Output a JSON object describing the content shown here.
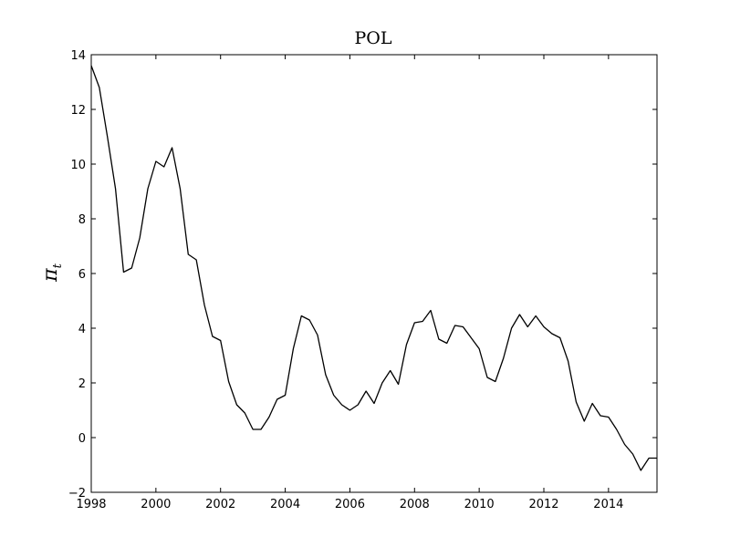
{
  "chart_data": {
    "type": "line",
    "title": "POL",
    "xlabel": "",
    "ylabel": "π",
    "ylabel_subscript": "t",
    "xlim": [
      1998,
      2015.5
    ],
    "ylim": [
      -2,
      14
    ],
    "xticks": [
      1998,
      2000,
      2002,
      2004,
      2006,
      2008,
      2010,
      2012,
      2014
    ],
    "yticks": [
      -2,
      0,
      2,
      4,
      6,
      8,
      10,
      12,
      14
    ],
    "ytick_labels": [
      "−2",
      "0",
      "2",
      "4",
      "6",
      "8",
      "10",
      "12",
      "14"
    ],
    "grid": false,
    "legend": "none",
    "line_color": "#000000",
    "series": [
      {
        "x": [
          1998.0,
          1998.25,
          1998.5,
          1998.75,
          1999.0,
          1999.25,
          1999.5,
          1999.75,
          2000.0,
          2000.25,
          2000.5,
          2000.75,
          2001.0,
          2001.25,
          2001.5,
          2001.75,
          2002.0,
          2002.25,
          2002.5,
          2002.75,
          2003.0,
          2003.25,
          2003.5,
          2003.75,
          2004.0,
          2004.25,
          2004.5,
          2004.75,
          2005.0,
          2005.25,
          2005.5,
          2005.75,
          2006.0,
          2006.25,
          2006.5,
          2006.75,
          2007.0,
          2007.25,
          2007.5,
          2007.75,
          2008.0,
          2008.25,
          2008.5,
          2008.75,
          2009.0,
          2009.25,
          2009.5,
          2009.75,
          2010.0,
          2010.25,
          2010.5,
          2010.75,
          2011.0,
          2011.25,
          2011.5,
          2011.75,
          2012.0,
          2012.25,
          2012.5,
          2012.75,
          2013.0,
          2013.25,
          2013.5,
          2013.75,
          2014.0,
          2014.25,
          2014.5,
          2014.75,
          2015.0,
          2015.25,
          2015.5
        ],
        "values": [
          13.6,
          12.8,
          11.0,
          9.1,
          6.05,
          6.2,
          7.3,
          9.1,
          10.1,
          9.9,
          10.6,
          9.1,
          6.7,
          6.5,
          4.85,
          3.7,
          3.55,
          2.05,
          1.2,
          0.9,
          0.3,
          0.3,
          0.75,
          1.4,
          1.55,
          3.25,
          4.45,
          4.3,
          3.75,
          2.3,
          1.55,
          1.2,
          1.0,
          1.2,
          1.7,
          1.25,
          2.0,
          2.45,
          1.95,
          3.4,
          4.2,
          4.25,
          4.65,
          3.6,
          3.45,
          4.1,
          4.05,
          3.65,
          3.25,
          2.2,
          2.05,
          2.9,
          4.0,
          4.5,
          4.05,
          4.45,
          4.05,
          3.8,
          3.65,
          2.8,
          1.3,
          0.6,
          1.25,
          0.8,
          0.75,
          0.3,
          -0.25,
          -0.6,
          -1.2,
          -0.75,
          -0.75
        ]
      }
    ]
  }
}
